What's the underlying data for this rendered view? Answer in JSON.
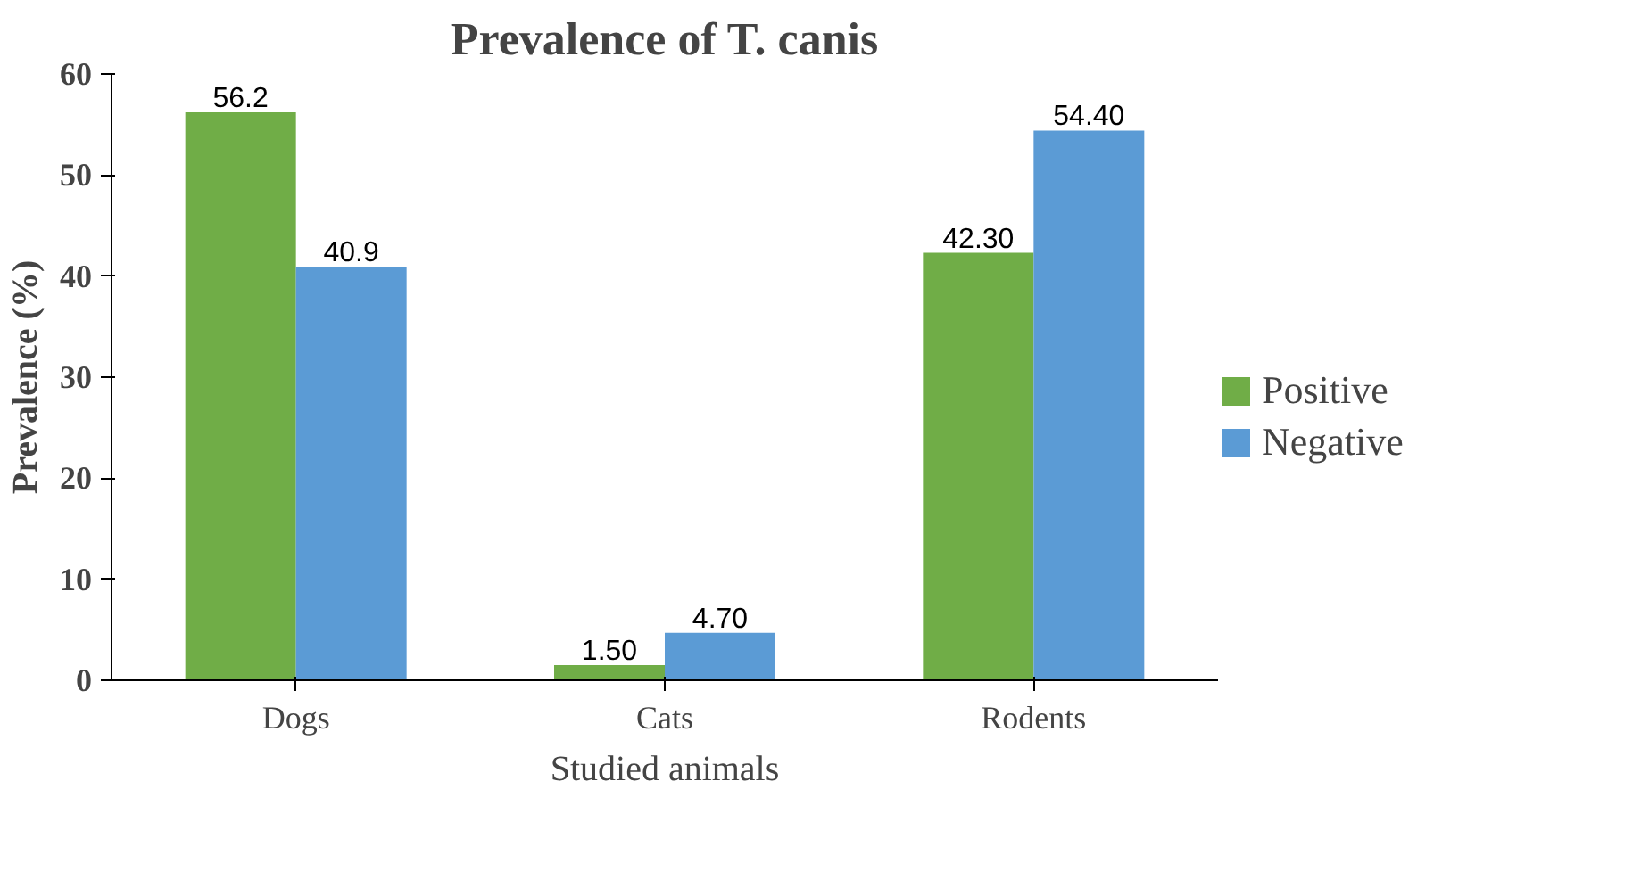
{
  "chart_data": {
    "type": "bar",
    "title": "Prevalence of T. canis",
    "xlabel": "Studied animals",
    "ylabel": "Prevalence (%)",
    "categories": [
      "Dogs",
      "Cats",
      "Rodents"
    ],
    "series": [
      {
        "name": "Positive",
        "color": "#70ad47",
        "values": [
          56.2,
          1.5,
          42.3
        ],
        "value_labels": [
          "56.2",
          "1.50",
          "42.30"
        ]
      },
      {
        "name": "Negative",
        "color": "#5b9bd5",
        "values": [
          40.9,
          4.7,
          54.4
        ],
        "value_labels": [
          "40.9",
          "4.70",
          "54.40"
        ]
      }
    ],
    "ylim": [
      0,
      60
    ],
    "yticks": [
      0,
      10,
      20,
      30,
      40,
      50,
      60
    ],
    "grid": false,
    "legend": "right"
  }
}
